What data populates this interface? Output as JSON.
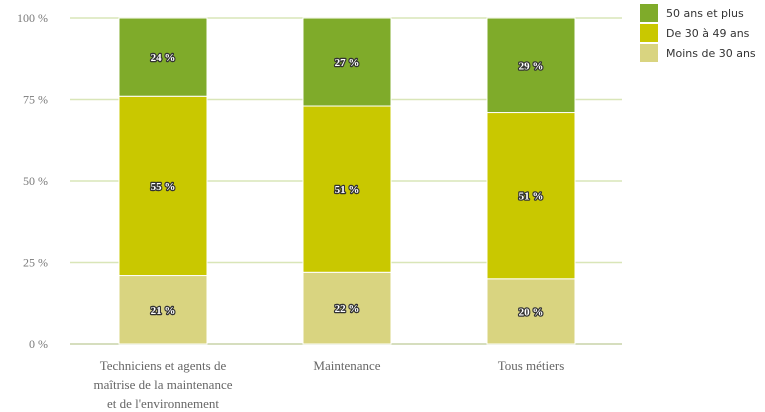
{
  "chart_data": {
    "type": "bar",
    "stacked": true,
    "categories": [
      [
        "Techniciens et agents de",
        "maîtrise de la maintenance",
        "et de l'environnement"
      ],
      [
        "Maintenance"
      ],
      [
        "Tous métiers"
      ]
    ],
    "series": [
      {
        "name": "Moins de 30 ans",
        "color": "#d9d480",
        "values": [
          21,
          22,
          20
        ],
        "labels": [
          "21 %",
          "22 %",
          "20 %"
        ]
      },
      {
        "name": "De 30 à 49 ans",
        "color": "#c9c800",
        "values": [
          55,
          51,
          51
        ],
        "labels": [
          "55 %",
          "51 %",
          "51 %"
        ]
      },
      {
        "name": "50 ans et plus",
        "color": "#7fab2a",
        "values": [
          24,
          27,
          29
        ],
        "labels": [
          "24 %",
          "27 %",
          "29 %"
        ]
      }
    ],
    "y_ticks": [
      {
        "value": 0,
        "label": "0 %"
      },
      {
        "value": 25,
        "label": "25 %"
      },
      {
        "value": 50,
        "label": "50 %"
      },
      {
        "value": 75,
        "label": "75 %"
      },
      {
        "value": 100,
        "label": "100 %"
      }
    ],
    "ylim": [
      0,
      100
    ],
    "grid": true,
    "grid_color": "#d9e6b8",
    "legend_position": "top-right",
    "legend_order": [
      "50 ans et plus",
      "De 30 à 49 ans",
      "Moins de 30 ans"
    ]
  }
}
